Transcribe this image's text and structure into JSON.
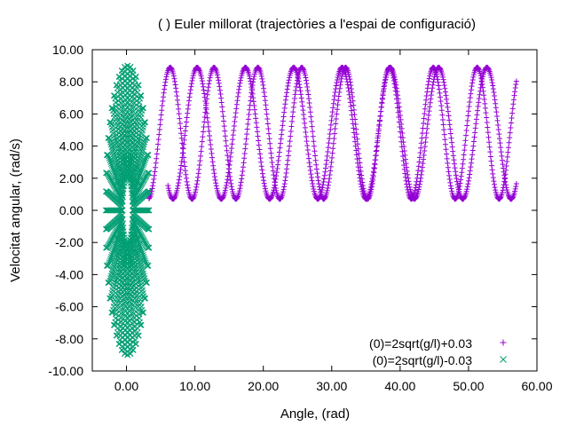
{
  "chart_data": {
    "type": "scatter",
    "title": "(  ) Euler millorat (trajectòries a l'espai de configuració)",
    "xlabel": "Angle,    (rad)",
    "ylabel": "Velocitat angular,    (rad/s)",
    "xlim": [
      -5,
      60
    ],
    "ylim": [
      -10,
      10
    ],
    "x_ticks": [
      "0.00",
      "10.00",
      "20.00",
      "30.00",
      "40.00",
      "50.00",
      "60.00"
    ],
    "x_tick_values": [
      0,
      10,
      20,
      30,
      40,
      50,
      60
    ],
    "y_ticks": [
      "-10.00",
      "-8.00",
      "-6.00",
      "-4.00",
      "-2.00",
      "0.00",
      "2.00",
      "4.00",
      "6.00",
      "8.00",
      "10.00"
    ],
    "y_tick_values": [
      -10,
      -8,
      -6,
      -4,
      -2,
      0,
      2,
      4,
      6,
      8,
      10
    ],
    "grid": false,
    "legend_position": "bottom-right",
    "series": [
      {
        "name": "(0)=2sqrt(g/l)+0.03",
        "marker": "plus",
        "color": "#9400d3",
        "description_points": {
          "x_start": 3.3,
          "x_end": 57.0,
          "y_min": 0.7,
          "y_max": 8.9,
          "crests_x": [
            9.0,
            18.5,
            26.6,
            35.0,
            42.0,
            48.7,
            54.7
          ],
          "troughs_x": [
            9.6,
            15.8,
            22.3,
            28.8,
            34.9,
            40.8,
            46.5,
            52.4
          ]
        }
      },
      {
        "name": "(0)=2sqrt(g/l)-0.03",
        "marker": "cross",
        "color": "#009e73",
        "description_points": {
          "x_min": -3.0,
          "x_max": 3.3,
          "y_min": -9.0,
          "y_max": 9.0
        }
      }
    ]
  }
}
